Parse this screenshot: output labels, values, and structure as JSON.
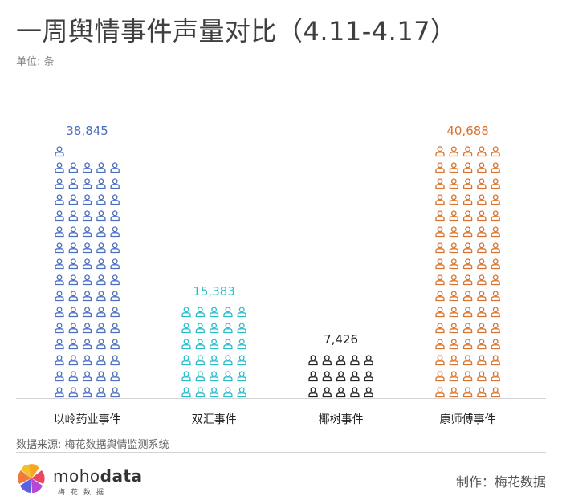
{
  "title": "一周舆情事件声量对比（4.11-4.17）",
  "unit_label": "单位: 条",
  "source": "数据来源: 梅花数据舆情监测系统",
  "maker": "制作：梅花数据",
  "brand": {
    "name_part1": "moho",
    "name_part2": "data",
    "subtitle": "梅花数据",
    "icon": "pinwheel-logo-icon"
  },
  "chart_data": {
    "type": "bar",
    "style": "pictogram",
    "icon": "person-icon",
    "icons_per_row": 5,
    "categories": [
      "以岭药业事件",
      "双汇事件",
      "椰树事件",
      "康师傅事件"
    ],
    "values": [
      38845,
      15383,
      7426,
      40688
    ],
    "value_labels": [
      "38,845",
      "15,383",
      "7,426",
      "40,688"
    ],
    "icon_counts": [
      76,
      30,
      15,
      80
    ],
    "colors": [
      "#4a6fc1",
      "#26bccb",
      "#222222",
      "#d9722a"
    ],
    "title": "一周舆情事件声量对比（4.11-4.17）",
    "ylabel": "单位: 条",
    "xlabel": "",
    "grid": false,
    "legend": "none"
  }
}
